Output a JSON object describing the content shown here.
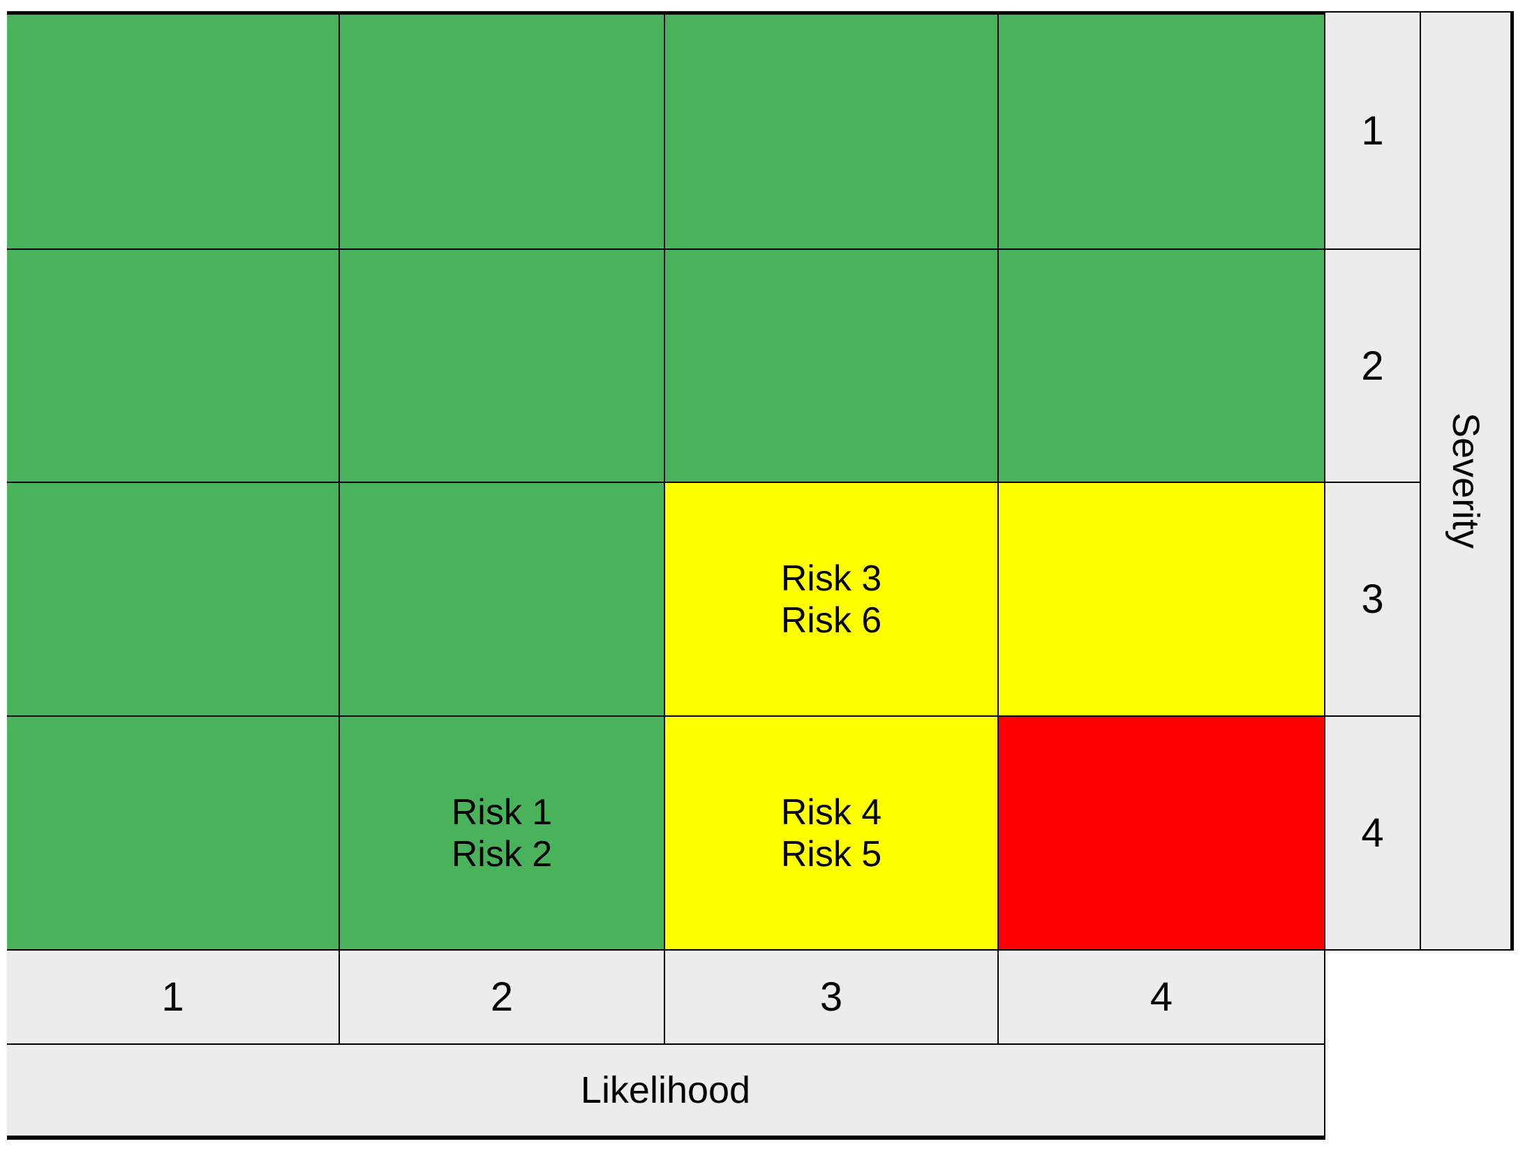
{
  "chart_data": {
    "type": "heatmap",
    "xlabel": "Likelihood",
    "ylabel": "Severity",
    "x_ticks": [
      "1",
      "2",
      "3",
      "4"
    ],
    "y_ticks": [
      "1",
      "2",
      "3",
      "4"
    ],
    "cells": [
      [
        "green",
        "green",
        "green",
        "green"
      ],
      [
        "green",
        "green",
        "green",
        "green"
      ],
      [
        "green",
        "green",
        "yellow",
        "yellow"
      ],
      [
        "green",
        "green",
        "yellow",
        "red"
      ]
    ],
    "risk_labels": [
      {
        "row": 3,
        "col": 3,
        "lines": [
          "Risk 3",
          "Risk 6"
        ]
      },
      {
        "row": 4,
        "col": 2,
        "lines": [
          "Risk 1",
          "Risk 2"
        ]
      },
      {
        "row": 4,
        "col": 3,
        "lines": [
          "Risk 4",
          "Risk 5"
        ]
      }
    ],
    "level_colors": {
      "green": "#4bb25c",
      "yellow": "#ffff00",
      "red": "#ff0000"
    },
    "axis_band_color": "#ececec",
    "grid_line_color": "#000000",
    "legend": "none"
  }
}
